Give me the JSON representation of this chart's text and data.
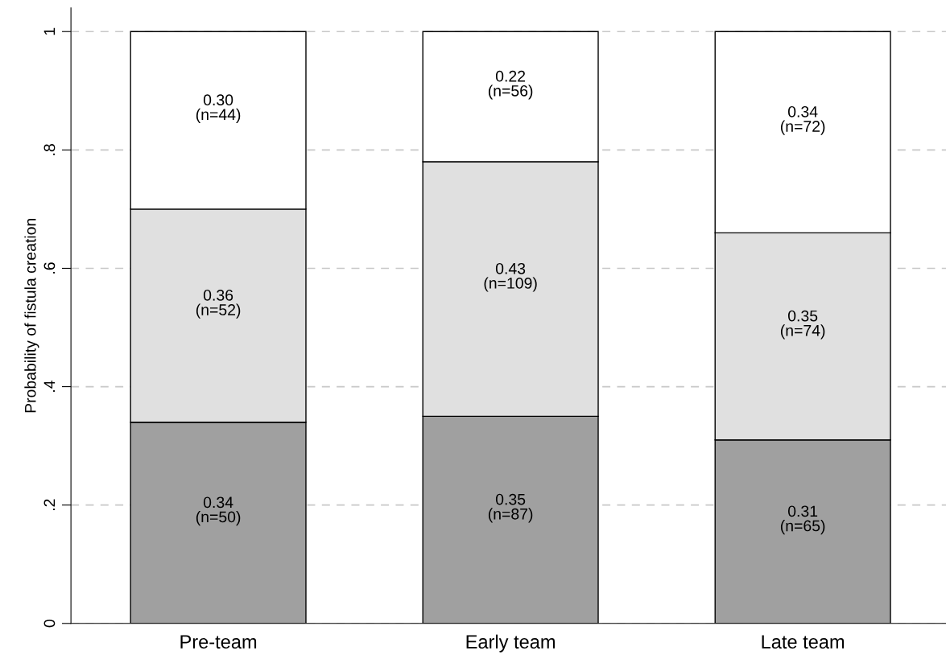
{
  "chart_data": {
    "type": "bar",
    "stacked": true,
    "ylabel": "Probability of fistula creation",
    "categories": [
      "Pre-team",
      "Early team",
      "Late team"
    ],
    "series": [
      {
        "color": "#a0a0a0",
        "values": [
          0.34,
          0.35,
          0.31
        ],
        "value_labels": [
          "0.34\n(n=50)",
          "0.35\n(n=87)",
          "0.31\n(n=65)"
        ]
      },
      {
        "color": "#e0e0e0",
        "values": [
          0.36,
          0.43,
          0.35
        ],
        "value_labels": [
          "0.36\n(n=52)",
          "0.43\n(n=109)",
          "0.35\n(n=74)"
        ]
      },
      {
        "color": "#ffffff",
        "values": [
          0.3,
          0.22,
          0.34
        ],
        "value_labels": [
          "0.30\n(n=44)",
          "0.22\n(n=56)",
          "0.34\n(n=72)"
        ]
      }
    ],
    "ylim": [
      0,
      1.04
    ],
    "yticks": [
      0,
      {
        "value": 0.2,
        "label": ".2"
      },
      {
        "value": 0.4,
        "label": ".4"
      },
      {
        "value": 0.6,
        "label": ".6"
      },
      {
        "value": 0.8,
        "label": ".8"
      },
      1
    ],
    "grid": "y",
    "legend": false
  }
}
